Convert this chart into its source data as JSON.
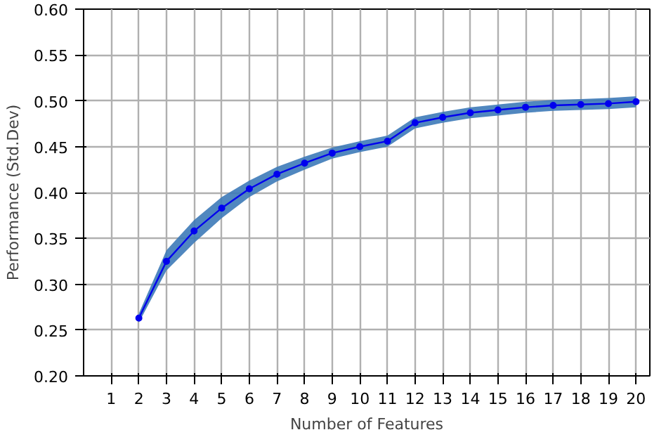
{
  "chart_data": {
    "type": "line",
    "xlabel": "Number of Features",
    "ylabel": "Performance (Std.Dev)",
    "x": [
      2,
      3,
      4,
      5,
      6,
      7,
      8,
      9,
      10,
      11,
      12,
      13,
      14,
      15,
      16,
      17,
      18,
      19,
      20
    ],
    "series": [
      {
        "color": "#0000ee",
        "values": [
          0.263,
          0.325,
          0.358,
          0.383,
          0.404,
          0.42,
          0.432,
          0.443,
          0.45,
          0.456,
          0.476,
          0.482,
          0.487,
          0.49,
          0.493,
          0.495,
          0.496,
          0.497,
          0.499
        ],
        "lower": [
          0.258,
          0.315,
          0.345,
          0.372,
          0.395,
          0.412,
          0.425,
          0.437,
          0.444,
          0.45,
          0.47,
          0.476,
          0.481,
          0.484,
          0.487,
          0.489,
          0.49,
          0.491,
          0.493
        ],
        "upper": [
          0.268,
          0.337,
          0.37,
          0.395,
          0.413,
          0.428,
          0.439,
          0.449,
          0.456,
          0.462,
          0.482,
          0.488,
          0.493,
          0.496,
          0.499,
          0.501,
          0.502,
          0.503,
          0.505
        ]
      }
    ],
    "xlim": [
      0,
      20.5
    ],
    "xticks": [
      1,
      2,
      3,
      4,
      5,
      6,
      7,
      8,
      9,
      10,
      11,
      12,
      13,
      14,
      15,
      16,
      17,
      18,
      19,
      20
    ],
    "ylim": [
      0.2,
      0.6
    ],
    "yticks": [
      {
        "value": 0.2,
        "label": "0.20"
      },
      {
        "value": 0.25,
        "label": "0.25"
      },
      {
        "value": 0.3,
        "label": "0.30"
      },
      {
        "value": 0.35,
        "label": "0.35"
      },
      {
        "value": 0.4,
        "label": "0.40"
      },
      {
        "value": 0.45,
        "label": "0.45"
      },
      {
        "value": 0.5,
        "label": "0.50"
      },
      {
        "value": 0.55,
        "label": "0.55"
      },
      {
        "value": 0.6,
        "label": "0.60"
      }
    ],
    "grid": true,
    "marker": "circle",
    "line_style": "solid"
  }
}
